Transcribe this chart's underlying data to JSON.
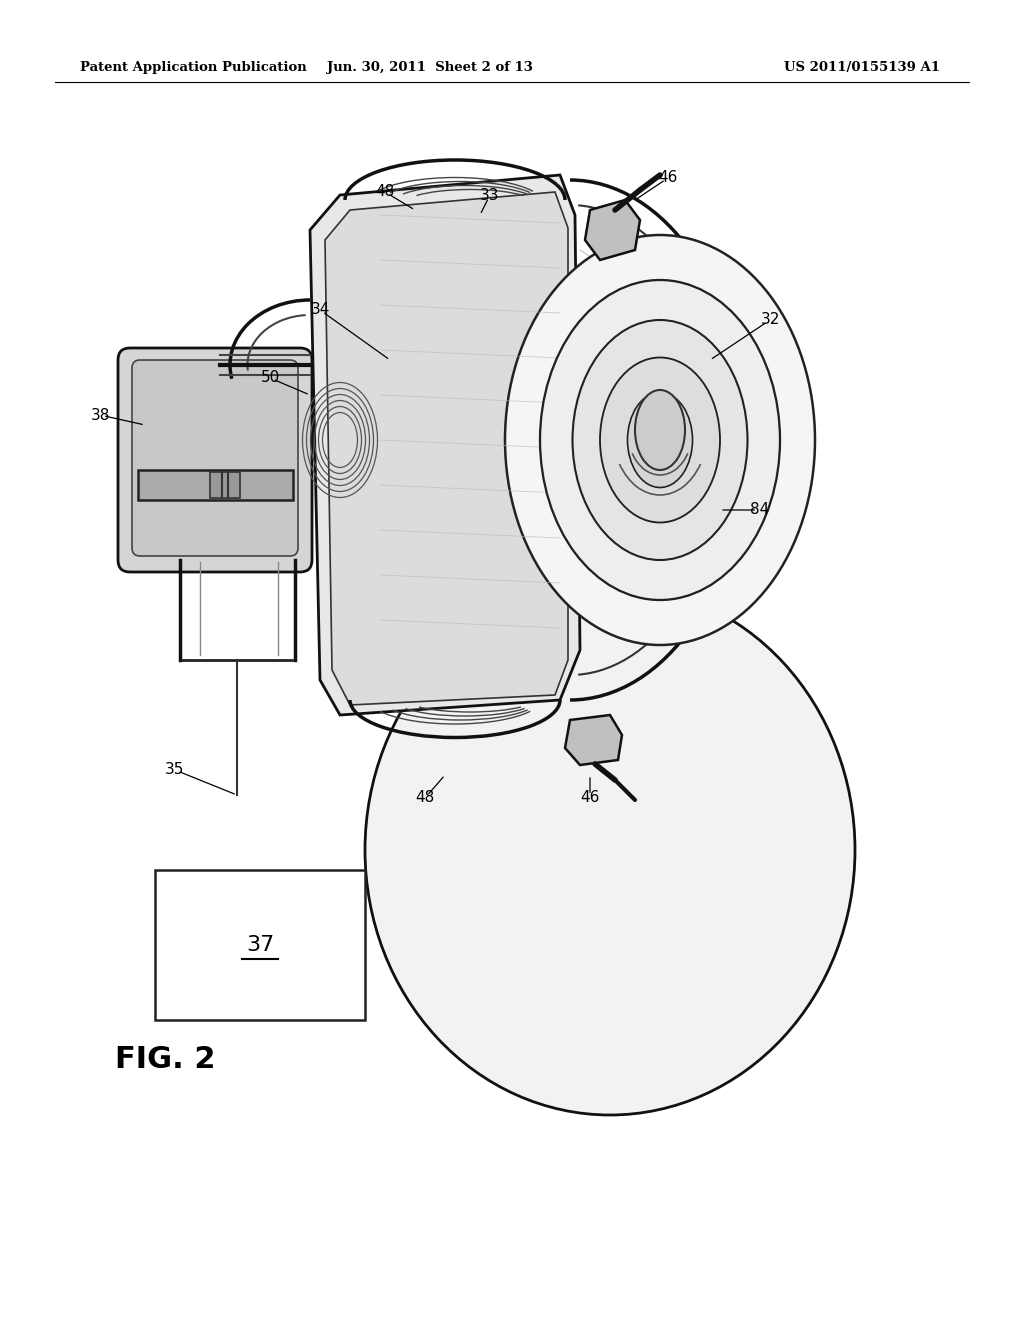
{
  "bg_color": "#ffffff",
  "header_left": "Patent Application Publication",
  "header_mid": "Jun. 30, 2011  Sheet 2 of 13",
  "header_right": "US 2011/0155139 A1",
  "fig_label": "FIG. 2",
  "box_label": "37"
}
